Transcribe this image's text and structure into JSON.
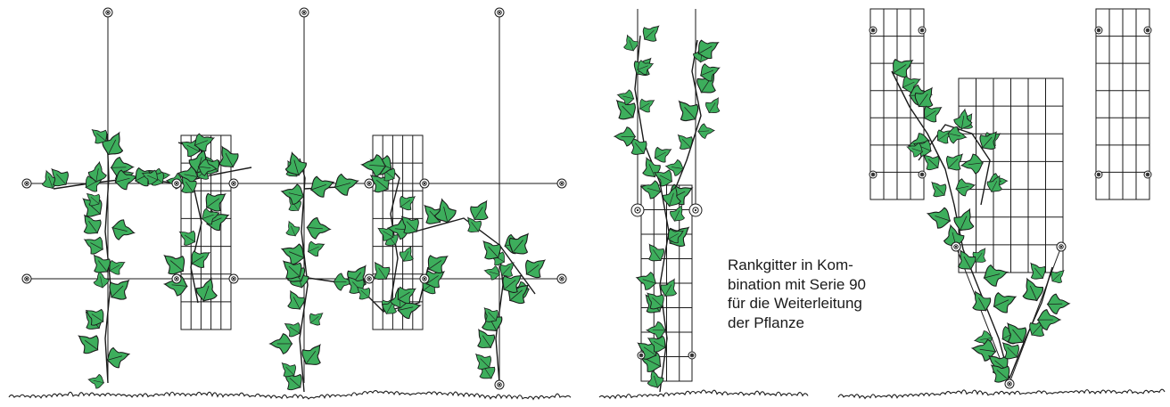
{
  "caption": {
    "lines": [
      "Rankgitter in Kom-",
      "bination mit Serie 90",
      "für die Weiterleitung",
      "der Pflanze"
    ]
  },
  "colors": {
    "leaf": "#3dae5c",
    "outline": "#1a1a1a",
    "background": "#ffffff"
  },
  "icons": [
    "cable-anchor-icon",
    "ivy-leaf-icon",
    "grass-tuft-icon"
  ]
}
